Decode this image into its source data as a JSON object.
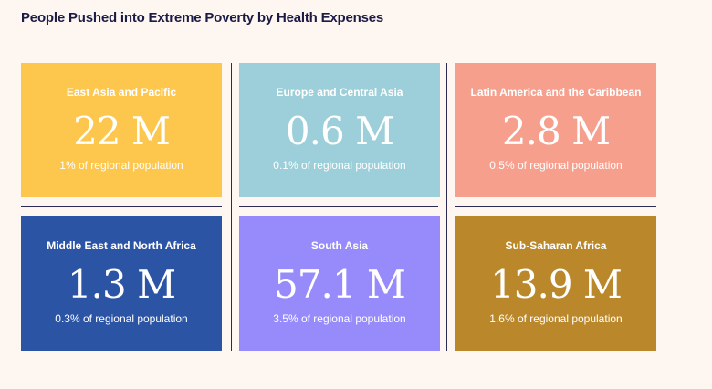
{
  "title": "People Pushed into Extreme Poverty by Health Expenses",
  "cards": [
    {
      "region": "East Asia and Pacific",
      "value": "22 M",
      "share": "1% of regional population",
      "color": "#fdc64d"
    },
    {
      "region": "Europe and Central Asia",
      "value": "0.6 M",
      "share": "0.1% of regional population",
      "color": "#9ccfd9"
    },
    {
      "region": "Latin America and the Caribbean",
      "value": "2.8 M",
      "share": "0.5% of regional population",
      "color": "#f69f8c"
    },
    {
      "region": "Middle East and North Africa",
      "value": "1.3 M",
      "share": "0.3% of regional population",
      "color": "#2c54a5"
    },
    {
      "region": "South Asia",
      "value": "57.1 M",
      "share": "3.5% of regional population",
      "color": "#978bfb"
    },
    {
      "region": "Sub-Saharan Africa",
      "value": "13.9 M",
      "share": "1.6% of regional population",
      "color": "#ba882b"
    }
  ]
}
